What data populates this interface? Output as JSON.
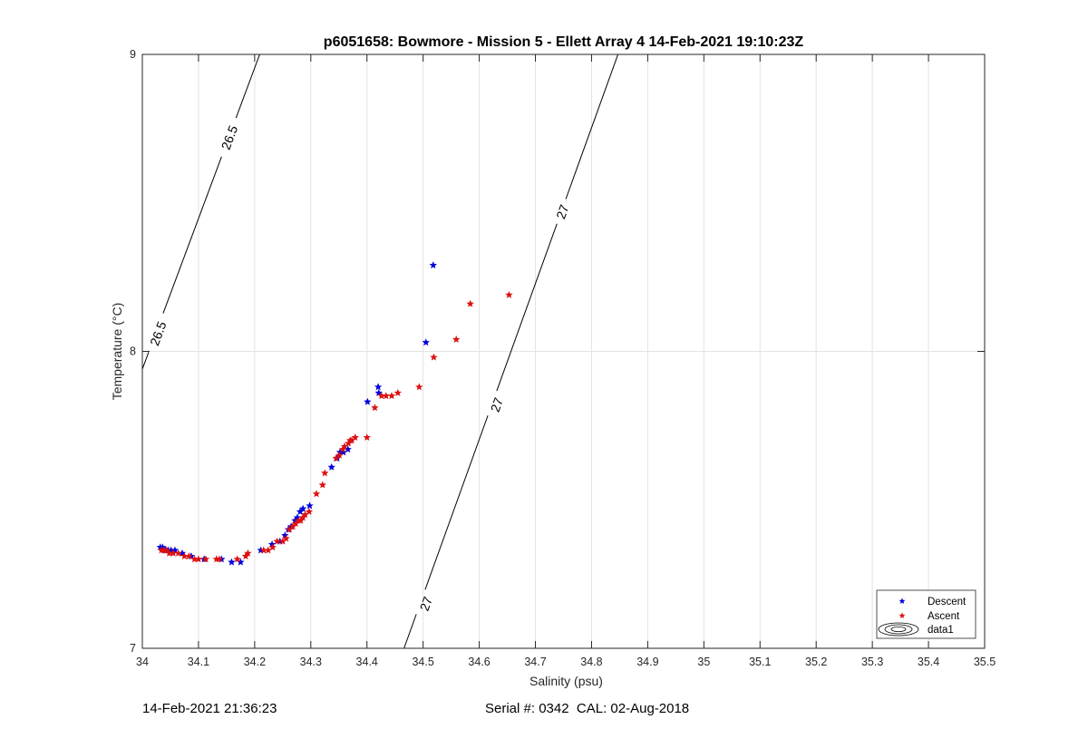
{
  "chart_data": {
    "type": "scatter",
    "title": "p6051658: Bowmore - Mission 5 - Ellett Array 4 14-Feb-2021 19:10:23Z",
    "xlabel": "Salinity (psu)",
    "ylabel": "Temperature (°C)",
    "xlim": [
      34,
      35.5
    ],
    "ylim": [
      7,
      9
    ],
    "xticks": [
      "34",
      "34.1",
      "34.2",
      "34.3",
      "34.4",
      "34.5",
      "34.6",
      "34.7",
      "34.8",
      "34.9",
      "35",
      "35.1",
      "35.2",
      "35.3",
      "35.4",
      "35.5"
    ],
    "yticks": [
      "7",
      "8",
      "9"
    ],
    "grid": true,
    "legend_position": "bottom-right",
    "legend": [
      "Descent",
      "Ascent",
      "data1"
    ],
    "colors": {
      "descent": "#0000dd",
      "ascent": "#dd1111",
      "contour": "#000000",
      "grid": "#e3e3e3"
    },
    "contours": [
      {
        "label": "26.5",
        "points": [
          [
            33.998,
            7.93
          ],
          [
            34.209,
            9.0
          ]
        ],
        "label_positions": [
          [
            34.028,
            8.06
          ],
          [
            34.155,
            8.72
          ]
        ]
      },
      {
        "label": "27",
        "points": [
          [
            34.466,
            7.0
          ],
          [
            34.847,
            9.0
          ]
        ],
        "label_positions": [
          [
            34.505,
            7.15
          ],
          [
            34.631,
            7.82
          ],
          [
            34.748,
            8.47
          ]
        ]
      }
    ],
    "series": [
      {
        "name": "Descent",
        "marker": "pentagram",
        "points": [
          [
            34.518,
            8.29
          ],
          [
            34.505,
            8.03
          ],
          [
            34.42,
            7.88
          ],
          [
            34.421,
            7.86
          ],
          [
            34.401,
            7.83
          ],
          [
            34.366,
            7.67
          ],
          [
            34.358,
            7.66
          ],
          [
            34.352,
            7.66
          ],
          [
            34.347,
            7.64
          ],
          [
            34.337,
            7.61
          ],
          [
            34.298,
            7.48
          ],
          [
            34.286,
            7.47
          ],
          [
            34.281,
            7.46
          ],
          [
            34.276,
            7.44
          ],
          [
            34.272,
            7.43
          ],
          [
            34.265,
            7.41
          ],
          [
            34.26,
            7.4
          ],
          [
            34.254,
            7.38
          ],
          [
            34.245,
            7.36
          ],
          [
            34.231,
            7.35
          ],
          [
            34.211,
            7.33
          ],
          [
            34.175,
            7.29
          ],
          [
            34.159,
            7.29
          ],
          [
            34.141,
            7.3
          ],
          [
            34.11,
            7.3
          ],
          [
            34.087,
            7.31
          ],
          [
            34.071,
            7.32
          ],
          [
            34.058,
            7.33
          ],
          [
            34.051,
            7.33
          ],
          [
            34.046,
            7.33
          ],
          [
            34.041,
            7.33
          ],
          [
            34.036,
            7.34
          ],
          [
            34.032,
            7.34
          ]
        ]
      },
      {
        "name": "Ascent",
        "marker": "pentagram",
        "points": [
          [
            34.653,
            8.19
          ],
          [
            34.584,
            8.16
          ],
          [
            34.559,
            8.04
          ],
          [
            34.519,
            7.98
          ],
          [
            34.493,
            7.88
          ],
          [
            34.455,
            7.86
          ],
          [
            34.444,
            7.85
          ],
          [
            34.434,
            7.85
          ],
          [
            34.426,
            7.85
          ],
          [
            34.414,
            7.81
          ],
          [
            34.4,
            7.71
          ],
          [
            34.379,
            7.71
          ],
          [
            34.373,
            7.7
          ],
          [
            34.37,
            7.7
          ],
          [
            34.367,
            7.69
          ],
          [
            34.36,
            7.68
          ],
          [
            34.357,
            7.67
          ],
          [
            34.351,
            7.65
          ],
          [
            34.345,
            7.64
          ],
          [
            34.325,
            7.59
          ],
          [
            34.321,
            7.55
          ],
          [
            34.31,
            7.52
          ],
          [
            34.297,
            7.46
          ],
          [
            34.29,
            7.45
          ],
          [
            34.286,
            7.44
          ],
          [
            34.282,
            7.43
          ],
          [
            34.278,
            7.43
          ],
          [
            34.273,
            7.42
          ],
          [
            34.268,
            7.41
          ],
          [
            34.262,
            7.4
          ],
          [
            34.256,
            7.37
          ],
          [
            34.25,
            7.36
          ],
          [
            34.24,
            7.36
          ],
          [
            34.232,
            7.34
          ],
          [
            34.224,
            7.33
          ],
          [
            34.216,
            7.33
          ],
          [
            34.188,
            7.32
          ],
          [
            34.184,
            7.31
          ],
          [
            34.169,
            7.3
          ],
          [
            34.137,
            7.3
          ],
          [
            34.132,
            7.3
          ],
          [
            34.113,
            7.3
          ],
          [
            34.1,
            7.3
          ],
          [
            34.093,
            7.3
          ],
          [
            34.083,
            7.31
          ],
          [
            34.075,
            7.31
          ],
          [
            34.064,
            7.32
          ],
          [
            34.055,
            7.32
          ],
          [
            34.048,
            7.32
          ],
          [
            34.043,
            7.33
          ],
          [
            34.038,
            7.33
          ],
          [
            34.034,
            7.33
          ]
        ]
      }
    ]
  },
  "footer": {
    "timestamp": "14-Feb-2021 21:36:23",
    "serial": "Serial #: 0342  CAL: 02-Aug-2018"
  }
}
